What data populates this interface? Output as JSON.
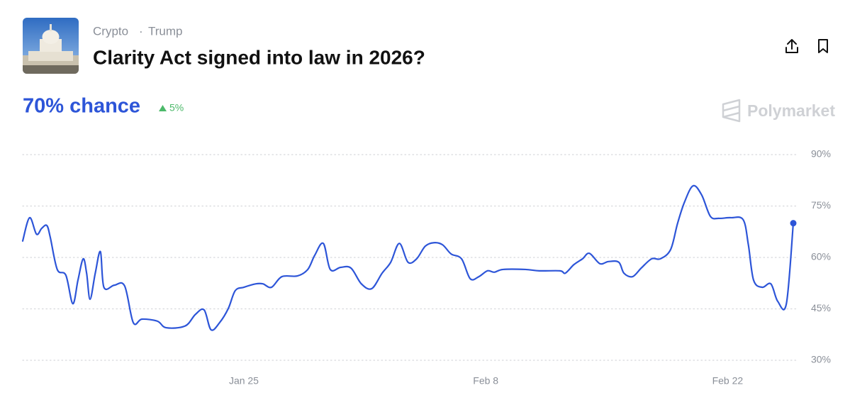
{
  "header": {
    "tags": [
      "Crypto",
      "Trump"
    ],
    "title": "Clarity Act signed into law in 2026?",
    "chance": "70% chance",
    "change": "5%",
    "brand": "Polymarket"
  },
  "chart_data": {
    "type": "line",
    "color": "#2d55d8",
    "grid": true,
    "x": [
      12.2,
      12.6,
      13.0,
      13.3,
      13.6,
      13.8,
      14.2,
      14.7,
      15.1,
      15.4,
      15.7,
      15.9,
      16.1,
      16.4,
      16.7,
      16.9,
      17.5,
      18.1,
      18.6,
      19.1,
      20.0,
      20.5,
      21.6,
      22.2,
      22.7,
      23.1,
      23.6,
      24.1,
      24.5,
      25.0,
      25.7,
      26.1,
      26.6,
      27.2,
      28.1,
      28.7,
      29.1,
      29.6,
      30.0,
      30.6,
      31.2,
      31.8,
      32.4,
      33.0,
      33.5,
      34.0,
      34.5,
      35.0,
      35.5,
      36.0,
      36.5,
      37.0,
      37.6,
      38.1,
      38.6,
      39.1,
      39.5,
      40.0,
      41.3,
      42.1,
      43.3,
      43.6,
      44.1,
      44.6,
      45.0,
      45.6,
      46.1,
      46.7,
      47.0,
      47.5,
      48.0,
      48.6,
      49.1,
      49.7,
      50.1,
      50.5,
      51.0,
      51.5,
      52.0,
      52.5,
      53.2,
      53.9,
      54.2,
      54.5,
      55.0,
      55.5,
      55.9,
      56.4,
      56.8
    ],
    "values": [
      64.8,
      71.6,
      66.8,
      68.5,
      69.3,
      65.8,
      56.5,
      54.8,
      46.5,
      53.4,
      59.6,
      55.4,
      47.8,
      55.4,
      61.7,
      51.3,
      51.9,
      51.7,
      41,
      42,
      41.4,
      39.5,
      40,
      43.4,
      44.7,
      38.9,
      41,
      45.1,
      50.3,
      51.3,
      52.3,
      52.3,
      51.3,
      54.4,
      54.6,
      56.5,
      60.6,
      64.1,
      56.5,
      57.1,
      56.9,
      52.3,
      50.9,
      55.4,
      58.6,
      64.1,
      58.6,
      59.6,
      63.3,
      64.3,
      63.7,
      61,
      59.6,
      53.8,
      54.4,
      56.1,
      55.7,
      56.5,
      56.5,
      56.1,
      56.1,
      55.4,
      57.9,
      59.6,
      61.2,
      58.2,
      58.8,
      58.6,
      55.4,
      54.4,
      56.9,
      59.6,
      59.6,
      62.3,
      69.9,
      76.1,
      80.9,
      78.2,
      72,
      71.4,
      71.6,
      71,
      63.7,
      53.4,
      51.3,
      52.3,
      47.2,
      46.5,
      70
    ],
    "xlim": [
      12.2,
      56.8
    ],
    "xticks": [
      {
        "value": 25,
        "label": "Jan 25"
      },
      {
        "value": 39,
        "label": "Feb 8"
      },
      {
        "value": 53,
        "label": "Feb 22"
      }
    ],
    "ylim": [
      30,
      90
    ],
    "yticks": [
      {
        "value": 30,
        "label": "30%"
      },
      {
        "value": 45,
        "label": "45%"
      },
      {
        "value": 60,
        "label": "60%"
      },
      {
        "value": 75,
        "label": "75%"
      },
      {
        "value": 90,
        "label": "90%"
      }
    ]
  }
}
